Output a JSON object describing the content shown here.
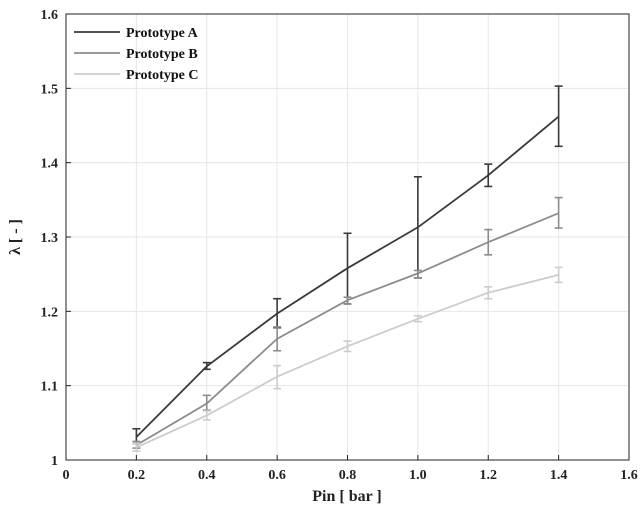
{
  "chart_data": {
    "type": "line",
    "xlabel": "Pin [ bar ]",
    "ylabel": "λ [ - ]",
    "xlim": [
      0,
      1.6
    ],
    "ylim": [
      1,
      1.6
    ],
    "xticks": [
      "0",
      "0.2",
      "0.4",
      "0.6",
      "0.8",
      "1.0",
      "1.2",
      "1.4",
      "1.6"
    ],
    "yticks": [
      "1",
      "1.1",
      "1.2",
      "1.3",
      "1.4",
      "1.5",
      "1.6"
    ],
    "grid": true,
    "legend_position": "top-left",
    "x": [
      0.2,
      0.4,
      0.6,
      0.8,
      1.0,
      1.2,
      1.4
    ],
    "series": [
      {
        "name": "Prototype A",
        "color": "#3a3a3a",
        "values": [
          1.031,
          1.126,
          1.197,
          1.258,
          1.313,
          1.383,
          1.462
        ],
        "err_low": [
          1.022,
          1.122,
          1.178,
          1.21,
          1.245,
          1.368,
          1.422
        ],
        "err_high": [
          1.042,
          1.131,
          1.217,
          1.305,
          1.381,
          1.398,
          1.503
        ]
      },
      {
        "name": "Prototype B",
        "color": "#8c8c8c",
        "values": [
          1.02,
          1.076,
          1.163,
          1.215,
          1.251,
          1.293,
          1.332
        ],
        "err_low": [
          1.016,
          1.067,
          1.147,
          1.21,
          1.245,
          1.276,
          1.312
        ],
        "err_high": [
          1.025,
          1.087,
          1.179,
          1.219,
          1.255,
          1.31,
          1.353
        ]
      },
      {
        "name": "Prototype C",
        "color": "#cccccc",
        "values": [
          1.017,
          1.06,
          1.112,
          1.153,
          1.19,
          1.225,
          1.249
        ],
        "err_low": [
          1.012,
          1.054,
          1.096,
          1.146,
          1.186,
          1.217,
          1.239
        ],
        "err_high": [
          1.022,
          1.066,
          1.127,
          1.16,
          1.194,
          1.233,
          1.259
        ]
      }
    ]
  }
}
